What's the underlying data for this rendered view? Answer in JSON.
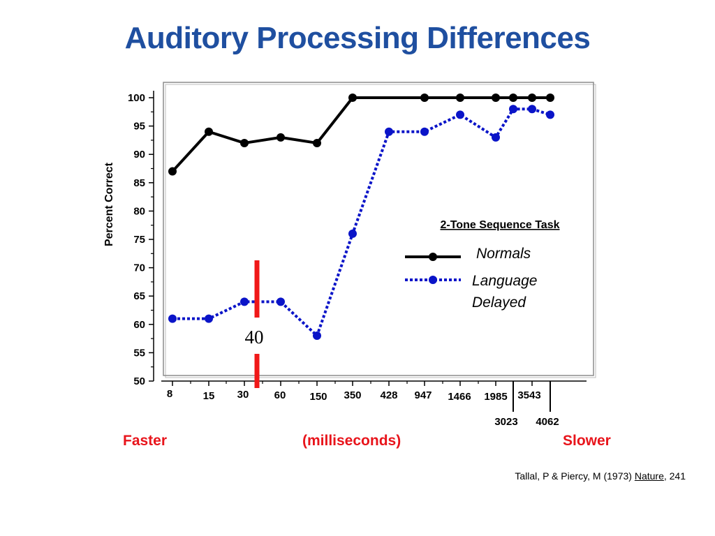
{
  "slide": {
    "title": "Auditory Processing Differences",
    "footer_left": "Faster",
    "footer_center": "(milliseconds)",
    "footer_right": "Slower",
    "citation_prefix": "Tallal, P & Piercy, M (1973) ",
    "citation_journal": "Nature",
    "citation_suffix": ", 241"
  },
  "colors": {
    "title": "#1f4fa0",
    "normals": "#000000",
    "language_delayed": "#0a14c8",
    "marker": "#f01818",
    "footer": "#e8141b",
    "highlight_tick": "#2a3cf0"
  },
  "chart_data": {
    "type": "line",
    "title": "",
    "ylabel": "Percent Correct",
    "xlabel": "(milliseconds)",
    "ylim": [
      50,
      100
    ],
    "yticks": [
      50,
      55,
      60,
      65,
      70,
      75,
      80,
      85,
      90,
      95,
      100
    ],
    "categories": [
      "8",
      "15",
      "30",
      "60",
      "150",
      "350",
      "428",
      "947",
      "1466",
      "1985",
      "3023",
      "3543",
      "4062"
    ],
    "highlighted_category": "1466",
    "legend_title": "2-Tone Sequence Task",
    "legend_position": "right",
    "series": [
      {
        "name": "Normals",
        "style": "solid",
        "points": [
          {
            "x": "8",
            "y": 87
          },
          {
            "x": "15",
            "y": 94
          },
          {
            "x": "30",
            "y": 92
          },
          {
            "x": "60",
            "y": 93
          },
          {
            "x": "150",
            "y": 92
          },
          {
            "x": "350",
            "y": 100
          },
          {
            "x": "947",
            "y": 100
          },
          {
            "x": "1466",
            "y": 100
          },
          {
            "x": "1985",
            "y": 100
          },
          {
            "x": "3023",
            "y": 100
          },
          {
            "x": "3543",
            "y": 100
          },
          {
            "x": "4062",
            "y": 100
          }
        ]
      },
      {
        "name_lines": [
          "Language",
          "Delayed"
        ],
        "style": "dotted",
        "points": [
          {
            "x": "8",
            "y": 61
          },
          {
            "x": "15",
            "y": 61
          },
          {
            "x": "30",
            "y": 64
          },
          {
            "x": "60",
            "y": 64
          },
          {
            "x": "150",
            "y": 58
          },
          {
            "x": "350",
            "y": 76
          },
          {
            "x": "428",
            "y": 94
          },
          {
            "x": "947",
            "y": 94
          },
          {
            "x": "1466",
            "y": 97
          },
          {
            "x": "1985",
            "y": 93
          },
          {
            "x": "3023",
            "y": 98
          },
          {
            "x": "3543",
            "y": 98
          },
          {
            "x": "4062",
            "y": 97
          }
        ]
      }
    ],
    "annotation": {
      "label": "40",
      "position_between": [
        "30",
        "60"
      ]
    }
  }
}
